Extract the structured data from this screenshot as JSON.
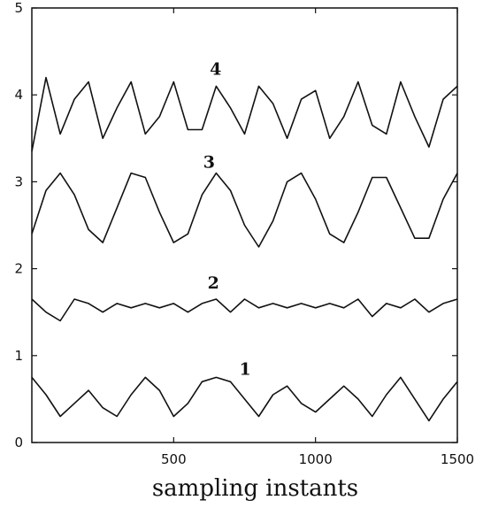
{
  "chart_data": {
    "type": "line",
    "title": "",
    "xlabel": "sampling instants",
    "ylabel": "",
    "xlim": [
      0,
      1500
    ],
    "ylim": [
      0,
      5
    ],
    "x_ticks": [
      500,
      1000,
      1500
    ],
    "y_ticks": [
      0,
      1,
      2,
      3,
      4,
      5
    ],
    "grid": false,
    "legend": "none",
    "series": [
      {
        "label": "1",
        "x": [
          0,
          50,
          100,
          150,
          200,
          250,
          300,
          350,
          400,
          450,
          500,
          550,
          600,
          650,
          700,
          750,
          800,
          850,
          900,
          950,
          1000,
          1050,
          1100,
          1150,
          1200,
          1250,
          1300,
          1350,
          1400,
          1450,
          1500
        ],
        "y": [
          0.75,
          0.55,
          0.3,
          0.45,
          0.6,
          0.4,
          0.3,
          0.55,
          0.75,
          0.6,
          0.3,
          0.45,
          0.7,
          0.75,
          0.7,
          0.5,
          0.3,
          0.55,
          0.65,
          0.45,
          0.35,
          0.5,
          0.65,
          0.5,
          0.3,
          0.55,
          0.75,
          0.5,
          0.25,
          0.5,
          0.7
        ],
        "label_position": [
          752,
          0.78
        ]
      },
      {
        "label": "2",
        "x": [
          0,
          50,
          100,
          150,
          200,
          250,
          300,
          350,
          400,
          450,
          500,
          550,
          600,
          650,
          700,
          750,
          800,
          850,
          900,
          950,
          1000,
          1050,
          1100,
          1150,
          1200,
          1250,
          1300,
          1350,
          1400,
          1450,
          1500
        ],
        "y": [
          1.65,
          1.5,
          1.4,
          1.65,
          1.6,
          1.5,
          1.6,
          1.55,
          1.6,
          1.55,
          1.6,
          1.5,
          1.6,
          1.65,
          1.5,
          1.65,
          1.55,
          1.6,
          1.55,
          1.6,
          1.55,
          1.6,
          1.55,
          1.65,
          1.45,
          1.6,
          1.55,
          1.65,
          1.5,
          1.6,
          1.65
        ],
        "label_position": [
          640,
          1.77
        ]
      },
      {
        "label": "3",
        "x": [
          0,
          50,
          100,
          150,
          200,
          250,
          300,
          350,
          400,
          450,
          500,
          550,
          600,
          650,
          700,
          750,
          800,
          850,
          900,
          950,
          1000,
          1050,
          1100,
          1150,
          1200,
          1250,
          1300,
          1350,
          1400,
          1450,
          1500
        ],
        "y": [
          2.4,
          2.9,
          3.1,
          2.85,
          2.45,
          2.3,
          2.7,
          3.1,
          3.05,
          2.65,
          2.3,
          2.4,
          2.85,
          3.1,
          2.9,
          2.5,
          2.25,
          2.55,
          3.0,
          3.1,
          2.8,
          2.4,
          2.3,
          2.65,
          3.05,
          3.05,
          2.7,
          2.35,
          2.35,
          2.8,
          3.1
        ],
        "label_position": [
          625,
          3.16
        ]
      },
      {
        "label": "4",
        "x": [
          0,
          50,
          100,
          150,
          200,
          250,
          300,
          350,
          400,
          450,
          500,
          550,
          600,
          650,
          700,
          750,
          800,
          850,
          900,
          950,
          1000,
          1050,
          1100,
          1150,
          1200,
          1250,
          1300,
          1350,
          1400,
          1450,
          1500
        ],
        "y": [
          3.35,
          4.2,
          3.55,
          3.95,
          4.15,
          3.5,
          3.85,
          4.15,
          3.55,
          3.75,
          4.15,
          3.6,
          3.6,
          4.1,
          3.85,
          3.55,
          4.1,
          3.9,
          3.5,
          3.95,
          4.05,
          3.5,
          3.75,
          4.15,
          3.65,
          3.55,
          4.15,
          3.75,
          3.4,
          3.95,
          4.1
        ],
        "label_position": [
          648,
          4.23
        ]
      }
    ]
  }
}
